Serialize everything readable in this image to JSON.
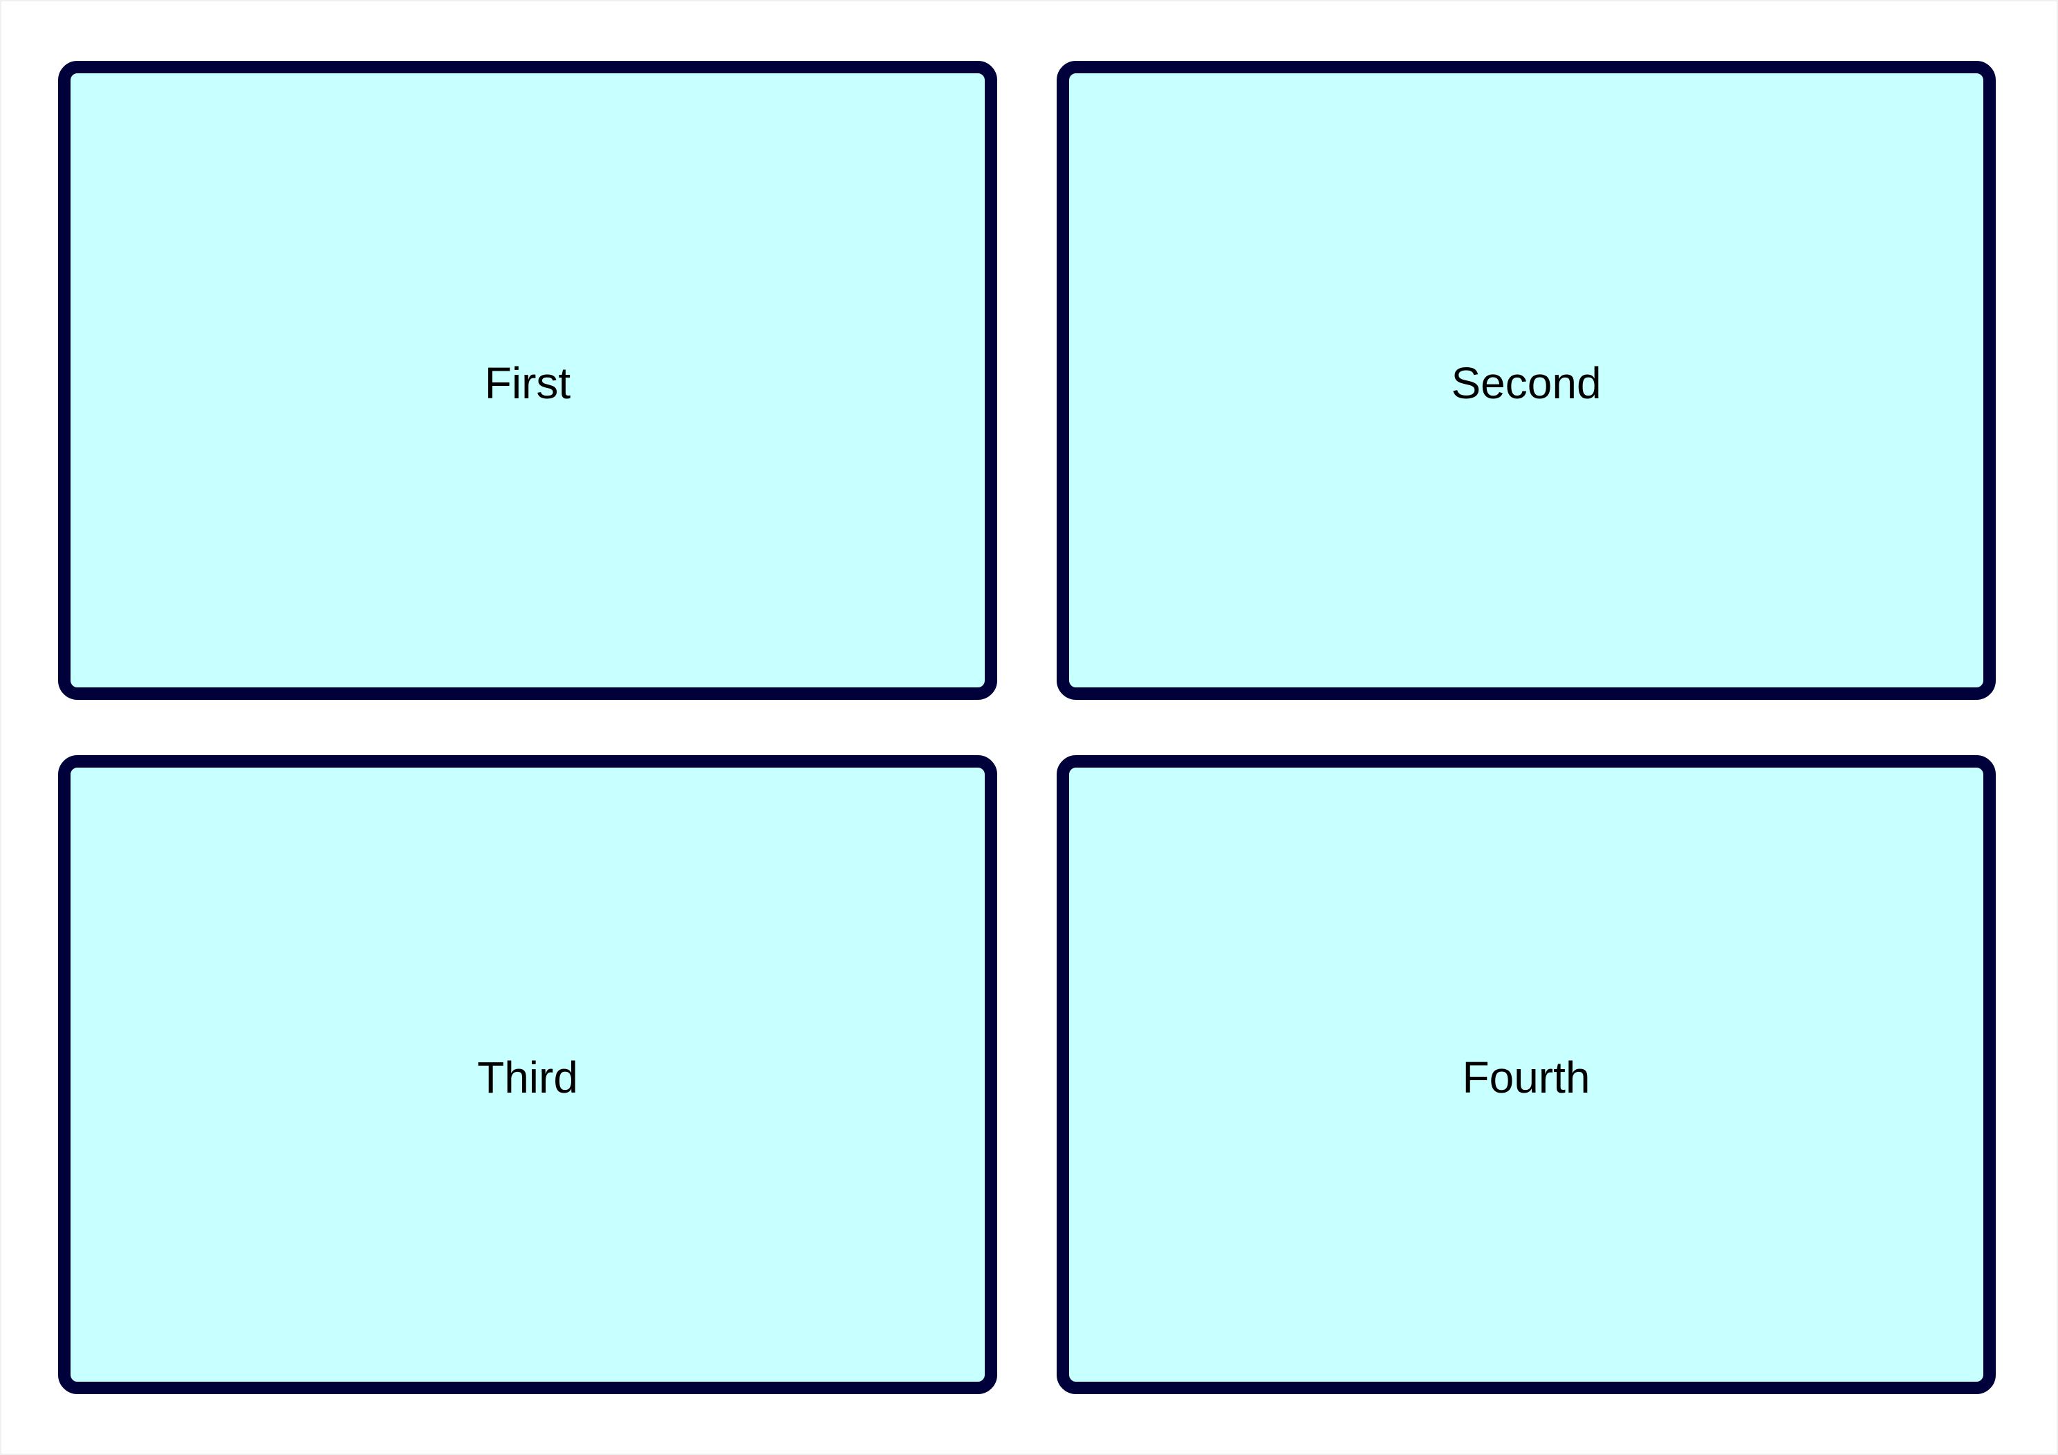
{
  "panels": [
    {
      "label": "First"
    },
    {
      "label": "Second"
    },
    {
      "label": "Third"
    },
    {
      "label": "Fourth"
    }
  ],
  "colors": {
    "panel_fill": "#c8ffff",
    "panel_border": "#00003a",
    "background": "#ffffff",
    "text": "#000000"
  }
}
